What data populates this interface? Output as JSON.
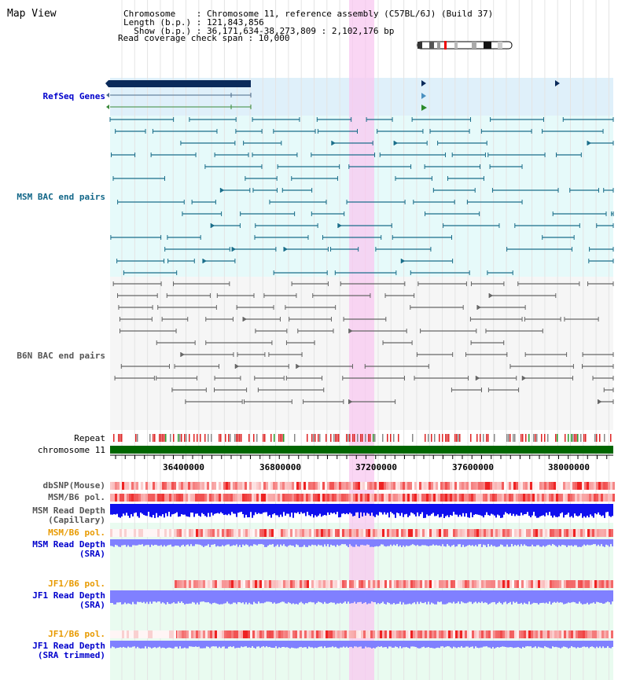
{
  "header": {
    "title": "Map View",
    "info_lines": [
      "Chromosome    : Chromosome 11, reference assembly (C57BL/6J) (Build 37)",
      "Length (b.p.) : 121,843,856",
      "  Show (b.p.) : 36,171,634-38,273,809 : 2,102,176 bp",
      "Read coverage check span : 10,000"
    ]
  },
  "tracks": {
    "refseq": "RefSeq Genes",
    "msm_bac": "MSM BAC end pairs",
    "b6n_bac": "B6N BAC end pairs",
    "repeat": "Repeat",
    "chromosome": "chromosome 11",
    "dbsnp": "dbSNP(Mouse)",
    "msm_b6_pol_1": "MSM/B6 pol.",
    "msm_read_depth_cap_1": "MSM Read Depth",
    "msm_read_depth_cap_2": "(Capillary)",
    "msm_b6_pol_2": "MSM/B6 pol.",
    "msm_read_depth_sra_1": "MSM Read Depth",
    "msm_read_depth_sra_2": "(SRA)",
    "jf1_b6_pol_1": "JF1/B6 pol.",
    "jf1_read_depth_1": "JF1 Read Depth",
    "jf1_read_depth_2": "(SRA)",
    "jf1_b6_pol_2": "JF1/B6 pol.",
    "jf1_read_depth_trim_1": "JF1 Read Depth",
    "jf1_read_depth_trim_2": "(SRA trimmed)"
  },
  "axis": {
    "ticks": [
      "36400000",
      "36800000",
      "37200000",
      "37600000",
      "38000000"
    ]
  },
  "colors": {
    "highlight": "#f5d4f0",
    "refseq_bg": "#dff0fa",
    "bac_bg": "#e6fafa",
    "b6n_bg": "#f2f2f2",
    "msm_line": "#1a6e8a",
    "b6n_line": "#666666",
    "chromosome_bar": "#006600",
    "depth_blue": "#1010ee",
    "depth_light": "#8080ff",
    "snp_red": "#ee6666"
  }
}
